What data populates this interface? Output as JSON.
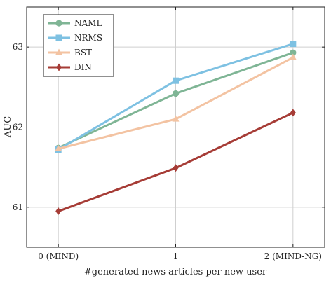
{
  "chart_data": {
    "type": "line",
    "title": "",
    "xlabel": "#generated news articles per new user",
    "ylabel": "AUC",
    "x": [
      0,
      1,
      2
    ],
    "x_tick_labels": [
      "0 (MIND)",
      "1",
      "2 (MIND-NG)"
    ],
    "xlim": [
      -0.27,
      2.27
    ],
    "ylim": [
      60.5,
      63.5
    ],
    "y_ticks": [
      61,
      62,
      63
    ],
    "y_tick_labels": [
      "61",
      "62",
      "63"
    ],
    "grid": true,
    "legend_position": "top-left",
    "series": [
      {
        "name": "NAML",
        "values": [
          61.74,
          62.42,
          62.93
        ],
        "color": "#7fb595",
        "marker": "circle"
      },
      {
        "name": "NRMS",
        "values": [
          61.72,
          62.58,
          63.04
        ],
        "color": "#7ec1e2",
        "marker": "square"
      },
      {
        "name": "BST",
        "values": [
          61.73,
          62.1,
          62.87
        ],
        "color": "#f3c3a2",
        "marker": "triangle"
      },
      {
        "name": "DIN",
        "values": [
          60.95,
          61.49,
          62.18
        ],
        "color": "#a63c36",
        "marker": "diamond"
      }
    ]
  }
}
